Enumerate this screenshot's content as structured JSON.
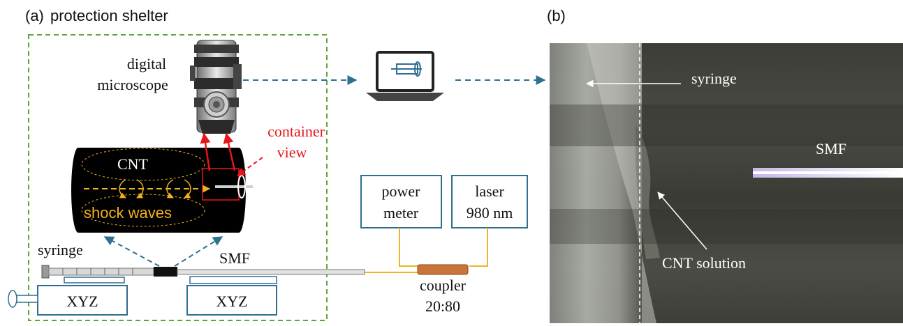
{
  "panel_a": {
    "label": "(a)",
    "title": "protection shelter",
    "microscope_label_line1": "digital",
    "microscope_label_line2": "microscope",
    "container_label_line1": "container",
    "container_label_line2": "view",
    "cnt_label": "CNT",
    "shock_label": "shock waves",
    "power_meter_line1": "power",
    "power_meter_line2": "meter",
    "laser_line1": "laser",
    "laser_line2": "980 nm",
    "syringe_label": "syringe",
    "smf_label": "SMF",
    "xyz_left": "XYZ",
    "xyz_right": "XYZ",
    "coupler_line1": "coupler",
    "coupler_line2": "20:80"
  },
  "panel_b": {
    "label": "(b)",
    "syringe_label": "syringe",
    "smf_label": "SMF",
    "cnt_solution_label": "CNT solution"
  },
  "colors": {
    "shelter_border": "#5aa83c",
    "box_border": "#2f6f8f",
    "arrow_blue": "#2f6f8f",
    "red": "#e8151b",
    "orange_text": "#f0b020",
    "fiber_yellow": "#f0b428",
    "coupler": "#c8743a"
  }
}
